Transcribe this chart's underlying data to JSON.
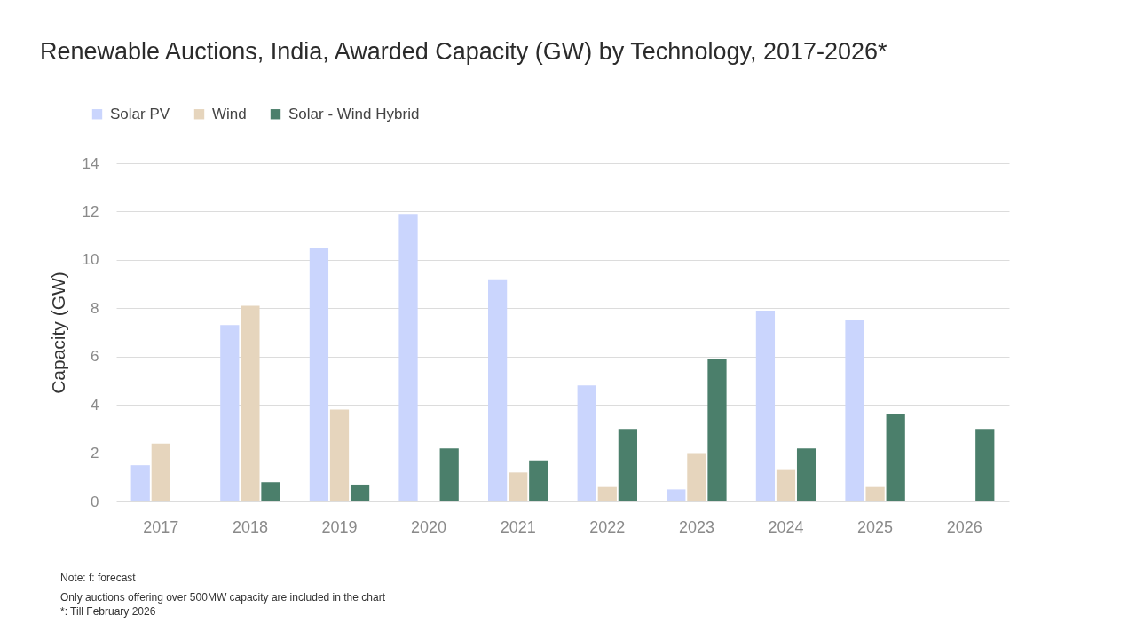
{
  "chart_data": {
    "type": "bar",
    "title": "Renewable Auctions, India, Awarded Capacity (GW) by Technology, 2017-2026*",
    "ylabel": "Capacity (GW)",
    "categories": [
      "2017",
      "2018",
      "2019",
      "2020",
      "2021",
      "2022",
      "2023",
      "2024",
      "2025",
      "2026"
    ],
    "series": [
      {
        "name": "Solar PV",
        "color": "#cad5fd",
        "values": [
          1.5,
          7.3,
          10.5,
          11.9,
          9.2,
          4.8,
          0.5,
          7.9,
          7.5,
          null
        ]
      },
      {
        "name": "Wind",
        "color": "#e6d5bd",
        "values": [
          2.4,
          8.1,
          3.8,
          null,
          1.2,
          0.6,
          2.0,
          1.3,
          0.6,
          null
        ]
      },
      {
        "name": "Solar - Wind Hybrid",
        "color": "#4b7f6b",
        "values": [
          null,
          0.8,
          0.7,
          2.2,
          1.7,
          3.0,
          5.9,
          2.2,
          3.6,
          3.0
        ]
      }
    ],
    "ylim": [
      0,
      14
    ],
    "yticks": [
      0,
      2,
      4,
      6,
      8,
      10,
      12,
      14
    ],
    "grid": "y",
    "legend": "top left",
    "annotations": [
      "Note: f: forecast",
      "Only auctions offering over 500MW capacity are included in the chart",
      "*: Till February 2026"
    ]
  }
}
